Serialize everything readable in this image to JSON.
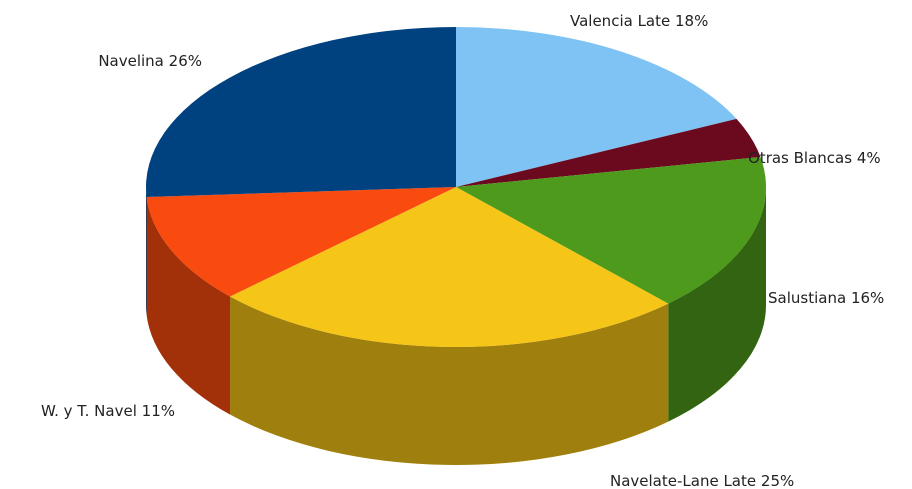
{
  "chart_data": {
    "type": "pie",
    "categories": [
      "Valencia Late",
      "Otras Blancas",
      "Salustiana",
      "Navelate-Lane Late",
      "W. y T. Navel",
      "Navelina"
    ],
    "values": [
      18,
      4,
      16,
      25,
      11,
      26
    ],
    "value_labels": [
      "18%",
      "4%",
      "16%",
      "25%",
      "11%",
      "26%"
    ],
    "colors": [
      "#7fc3f5",
      "#6b0a1e",
      "#4e9a1c",
      "#f5c518",
      "#f94a0f",
      "#00417f"
    ]
  }
}
